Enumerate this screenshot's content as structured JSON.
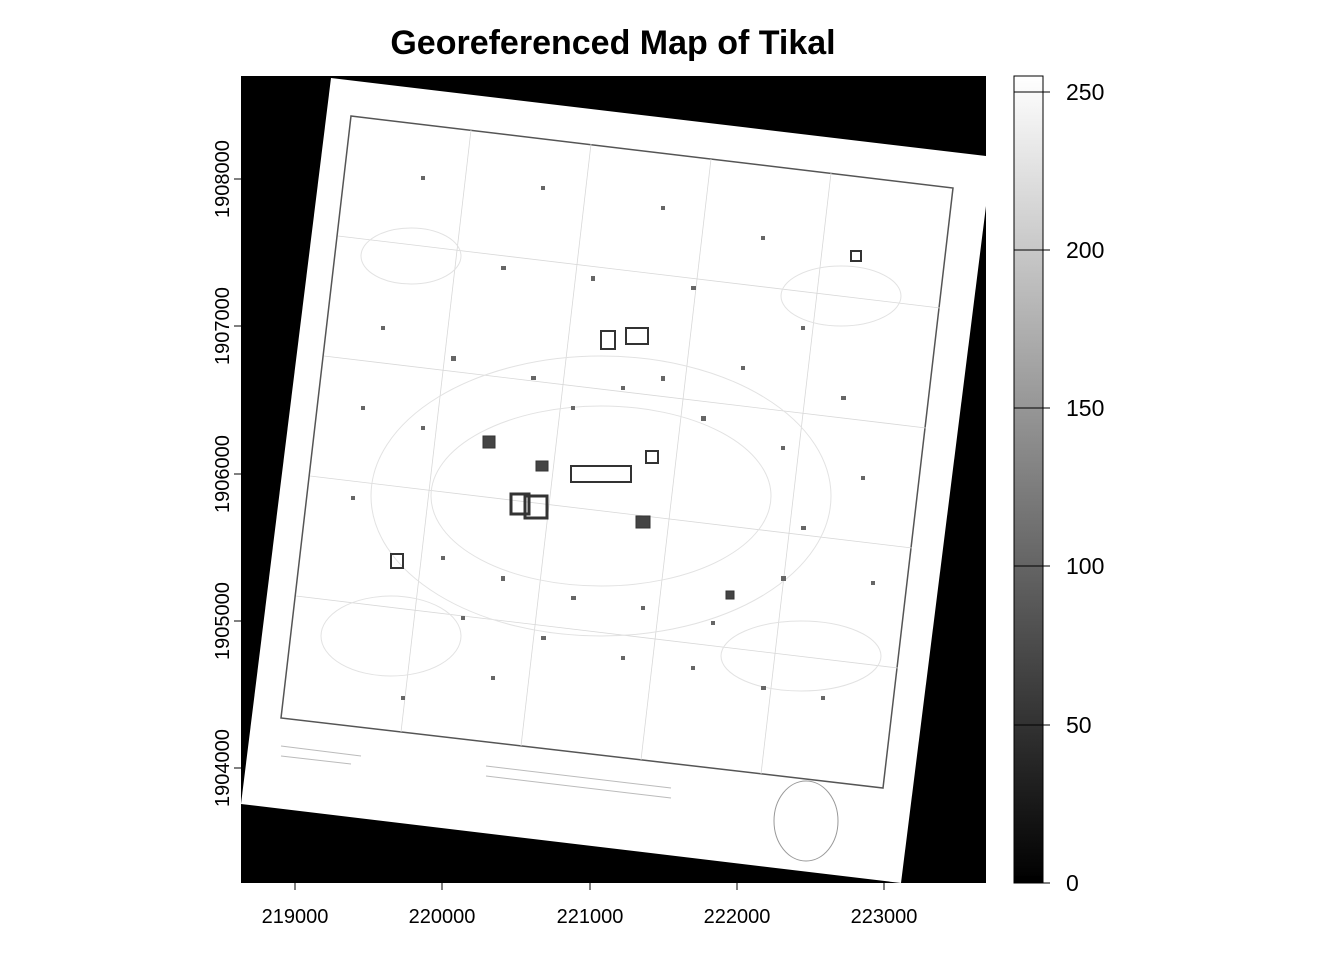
{
  "title": "Georeferenced Map of Tikal",
  "chart_data": {
    "type": "heatmap",
    "title": "Georeferenced Map of Tikal",
    "xlabel": "",
    "ylabel": "",
    "xlim": [
      218640,
      223700
    ],
    "ylim": [
      1903210,
      1908690
    ],
    "x_ticks": [
      "219000",
      "220000",
      "221000",
      "222000",
      "223000"
    ],
    "y_ticks": [
      "1904000",
      "1905000",
      "1906000",
      "1907000",
      "1908000"
    ],
    "colorbar": {
      "range": [
        0,
        255
      ],
      "ticks": [
        "0",
        "50",
        "100",
        "150",
        "200",
        "250"
      ],
      "palette": "greyscale",
      "low_color": "#000000",
      "high_color": "#ffffff"
    },
    "background_value": 0,
    "map_value": 255
  }
}
